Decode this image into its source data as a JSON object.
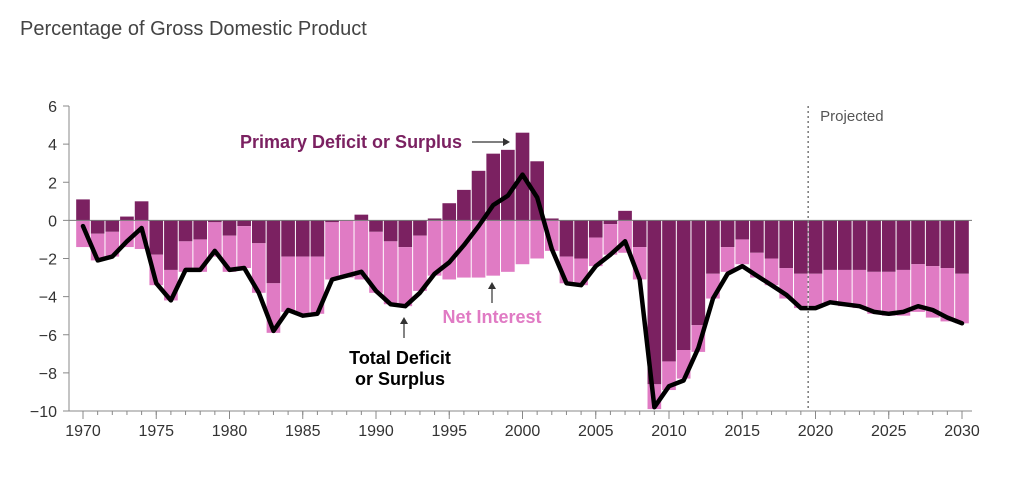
{
  "chart_data": {
    "type": "bar",
    "subtitle": "Percentage of Gross Domestic Product",
    "projected_label": "Projected",
    "projection_start_year": 2019.5,
    "xlim": [
      1970,
      2030
    ],
    "ylim": [
      -10,
      6
    ],
    "x_ticks": [
      1970,
      1975,
      1980,
      1985,
      1990,
      1995,
      2000,
      2005,
      2010,
      2015,
      2020,
      2025,
      2030
    ],
    "y_ticks": [
      6,
      4,
      2,
      0,
      -2,
      -4,
      -6,
      -8,
      -10
    ],
    "years": [
      1970,
      1971,
      1972,
      1973,
      1974,
      1975,
      1976,
      1977,
      1978,
      1979,
      1980,
      1981,
      1982,
      1983,
      1984,
      1985,
      1986,
      1987,
      1988,
      1989,
      1990,
      1991,
      1992,
      1993,
      1994,
      1995,
      1996,
      1997,
      1998,
      1999,
      2000,
      2001,
      2002,
      2003,
      2004,
      2005,
      2006,
      2007,
      2008,
      2009,
      2010,
      2011,
      2012,
      2013,
      2014,
      2015,
      2016,
      2017,
      2018,
      2019,
      2020,
      2021,
      2022,
      2023,
      2024,
      2025,
      2026,
      2027,
      2028,
      2029,
      2030
    ],
    "series": [
      {
        "name": "Primary Deficit or Surplus",
        "color": "#7b2161",
        "values": [
          1.1,
          -0.7,
          -0.6,
          0.2,
          1.0,
          -1.8,
          -2.6,
          -1.1,
          -1.0,
          -0.1,
          -0.8,
          -0.3,
          -1.2,
          -3.3,
          -1.9,
          -1.9,
          -1.9,
          -0.1,
          0.0,
          0.3,
          -0.6,
          -1.1,
          -1.4,
          -0.8,
          0.1,
          0.9,
          1.6,
          2.6,
          3.5,
          3.7,
          4.6,
          3.1,
          0.1,
          -1.9,
          -2.0,
          -0.9,
          -0.2,
          0.5,
          -1.4,
          -8.6,
          -7.4,
          -6.8,
          -5.5,
          -2.8,
          -1.4,
          -1.0,
          -1.7,
          -2.0,
          -2.5,
          -2.8,
          -2.8,
          -2.6,
          -2.6,
          -2.6,
          -2.7,
          -2.7,
          -2.6,
          -2.3,
          -2.4,
          -2.5,
          -2.8
        ]
      },
      {
        "name": "Net Interest",
        "color": "#e07bc4",
        "values": [
          -1.4,
          -1.4,
          -1.3,
          -1.4,
          -1.5,
          -1.6,
          -1.6,
          -1.6,
          -1.7,
          -1.8,
          -1.9,
          -2.2,
          -2.6,
          -2.6,
          -2.9,
          -3.0,
          -3.0,
          -3.0,
          -3.0,
          -3.1,
          -3.2,
          -3.3,
          -3.1,
          -2.9,
          -2.9,
          -3.1,
          -3.0,
          -3.0,
          -2.9,
          -2.7,
          -2.3,
          -2.0,
          -1.6,
          -1.4,
          -1.4,
          -1.5,
          -1.6,
          -1.7,
          -1.7,
          -1.3,
          -1.5,
          -1.5,
          -1.4,
          -1.3,
          -1.3,
          -1.3,
          -1.3,
          -1.4,
          -1.6,
          -1.8,
          -1.8,
          -1.8,
          -1.9,
          -2.0,
          -2.2,
          -2.3,
          -2.4,
          -2.5,
          -2.7,
          -2.8,
          -2.6
        ]
      },
      {
        "name": "Total Deficit or Surplus",
        "color": "#000000",
        "values": [
          -0.3,
          -2.1,
          -1.9,
          -1.1,
          -0.4,
          -3.3,
          -4.2,
          -2.6,
          -2.6,
          -1.6,
          -2.6,
          -2.5,
          -3.8,
          -5.8,
          -4.7,
          -5.0,
          -4.9,
          -3.1,
          -2.9,
          -2.7,
          -3.7,
          -4.4,
          -4.5,
          -3.8,
          -2.8,
          -2.2,
          -1.3,
          -0.3,
          0.8,
          1.3,
          2.4,
          1.2,
          -1.5,
          -3.3,
          -3.4,
          -2.4,
          -1.8,
          -1.1,
          -3.1,
          -9.8,
          -8.7,
          -8.4,
          -6.7,
          -4.1,
          -2.8,
          -2.4,
          -2.9,
          -3.4,
          -3.9,
          -4.6,
          -4.6,
          -4.3,
          -4.4,
          -4.5,
          -4.8,
          -4.9,
          -4.8,
          -4.5,
          -4.7,
          -5.1,
          -5.4
        ]
      }
    ],
    "annotations": [
      {
        "text": "Primary Deficit or Surplus",
        "color": "#7b2161",
        "arrow": "right"
      },
      {
        "text": "Net Interest",
        "color": "#e07bc4",
        "arrow": "up"
      },
      {
        "lines": [
          "Total Deficit",
          "or Surplus"
        ],
        "color": "#000000",
        "arrow": "up"
      }
    ]
  }
}
